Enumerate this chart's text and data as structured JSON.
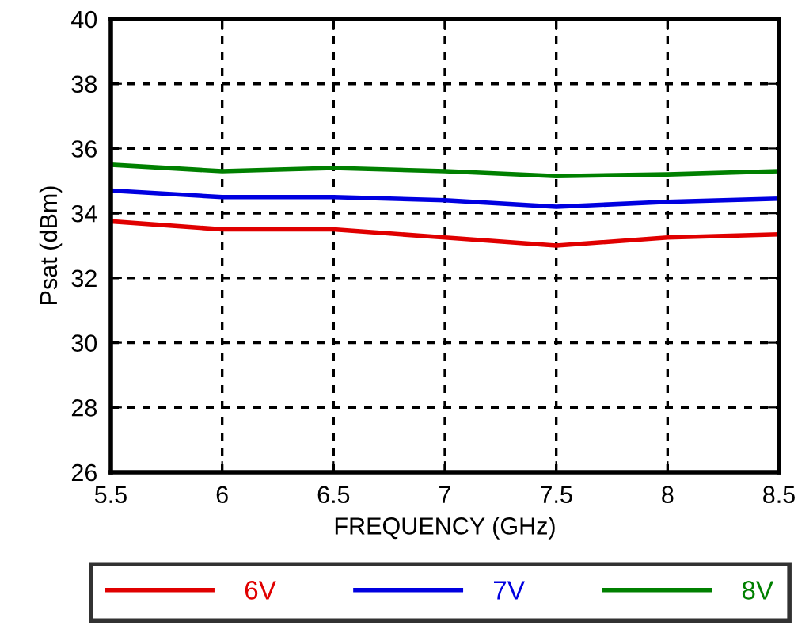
{
  "chart_data": {
    "type": "line",
    "xlabel": "FREQUENCY (GHz)",
    "ylabel": "Psat (dBm)",
    "x": [
      5.5,
      6,
      6.5,
      7,
      7.5,
      8,
      8.5
    ],
    "series": [
      {
        "name": "6V",
        "color": "#e00000",
        "values": [
          33.75,
          33.5,
          33.5,
          33.25,
          33.0,
          33.25,
          33.35
        ]
      },
      {
        "name": "7V",
        "color": "#0000e0",
        "values": [
          34.7,
          34.5,
          34.5,
          34.4,
          34.2,
          34.35,
          34.45
        ]
      },
      {
        "name": "8V",
        "color": "#008000",
        "values": [
          35.5,
          35.3,
          35.4,
          35.3,
          35.15,
          35.2,
          35.3
        ]
      }
    ],
    "xlim": [
      5.5,
      8.5
    ],
    "xticks": [
      5.5,
      6,
      6.5,
      7,
      7.5,
      8,
      8.5
    ],
    "ylim": [
      26,
      40
    ],
    "yticks": [
      26,
      28,
      30,
      32,
      34,
      36,
      38,
      40
    ],
    "grid": true,
    "legend": "bottom",
    "marker": "none",
    "line_style": "solid"
  }
}
